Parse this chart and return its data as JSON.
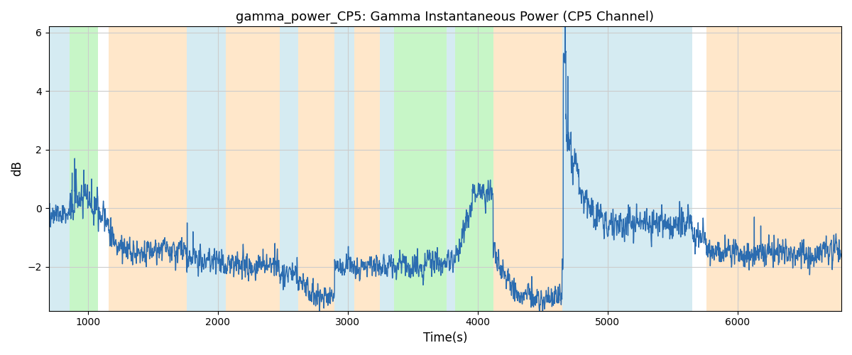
{
  "title": "gamma_power_CP5: Gamma Instantaneous Power (CP5 Channel)",
  "xlabel": "Time(s)",
  "ylabel": "dB",
  "xlim": [
    700,
    6800
  ],
  "ylim": [
    -3.5,
    6.2
  ],
  "yticks": [
    -2,
    0,
    2,
    4,
    6
  ],
  "xticks": [
    1000,
    2000,
    3000,
    4000,
    5000,
    6000
  ],
  "line_color": "#2b6cb0",
  "line_width": 1.0,
  "bg_bands": [
    {
      "xmin": 700,
      "xmax": 860,
      "color": "#add8e6",
      "alpha": 0.5
    },
    {
      "xmin": 860,
      "xmax": 1080,
      "color": "#90ee90",
      "alpha": 0.5
    },
    {
      "xmin": 1080,
      "xmax": 1160,
      "color": "#ffffff",
      "alpha": 0.0
    },
    {
      "xmin": 1160,
      "xmax": 1760,
      "color": "#ffd5a0",
      "alpha": 0.55
    },
    {
      "xmin": 1760,
      "xmax": 2060,
      "color": "#add8e6",
      "alpha": 0.5
    },
    {
      "xmin": 2060,
      "xmax": 2480,
      "color": "#ffd5a0",
      "alpha": 0.55
    },
    {
      "xmin": 2480,
      "xmax": 2620,
      "color": "#add8e6",
      "alpha": 0.5
    },
    {
      "xmin": 2620,
      "xmax": 2900,
      "color": "#ffd5a0",
      "alpha": 0.55
    },
    {
      "xmin": 2900,
      "xmax": 3050,
      "color": "#add8e6",
      "alpha": 0.5
    },
    {
      "xmin": 3050,
      "xmax": 3250,
      "color": "#ffd5a0",
      "alpha": 0.55
    },
    {
      "xmin": 3250,
      "xmax": 3360,
      "color": "#add8e6",
      "alpha": 0.5
    },
    {
      "xmin": 3360,
      "xmax": 3760,
      "color": "#90ee90",
      "alpha": 0.5
    },
    {
      "xmin": 3760,
      "xmax": 3830,
      "color": "#add8e6",
      "alpha": 0.5
    },
    {
      "xmin": 3830,
      "xmax": 4120,
      "color": "#90ee90",
      "alpha": 0.5
    },
    {
      "xmin": 4120,
      "xmax": 4650,
      "color": "#ffd5a0",
      "alpha": 0.55
    },
    {
      "xmin": 4650,
      "xmax": 5650,
      "color": "#add8e6",
      "alpha": 0.5
    },
    {
      "xmin": 5650,
      "xmax": 5760,
      "color": "#ffffff",
      "alpha": 0.0
    },
    {
      "xmin": 5760,
      "xmax": 6800,
      "color": "#ffd5a0",
      "alpha": 0.55
    }
  ],
  "seed": 42,
  "n_points": 6100,
  "figsize": [
    12,
    5
  ],
  "dpi": 100
}
